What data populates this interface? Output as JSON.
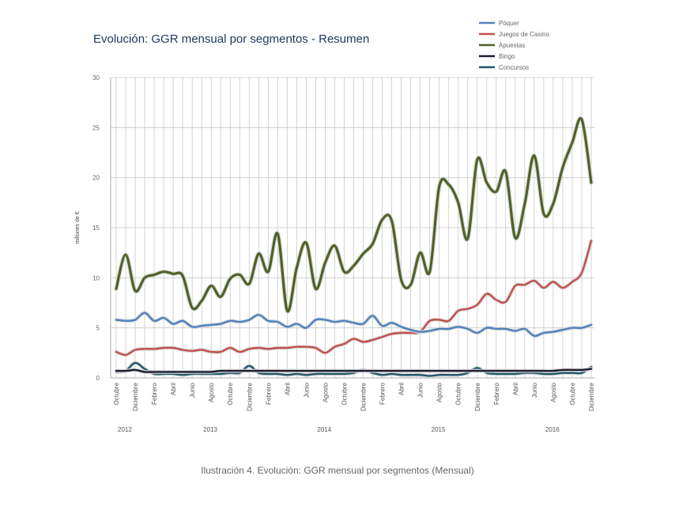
{
  "caption": "Ilustración 4. Evolución: GGR mensual por segmentos (Mensual)",
  "chart_data": {
    "type": "line",
    "title": "Evolución: GGR mensual por segmentos - Resumen",
    "xlabel": "",
    "ylabel": "millones de €",
    "ylim": [
      0,
      30
    ],
    "yticks": [
      0,
      5,
      10,
      15,
      20,
      25,
      30
    ],
    "grid": true,
    "legend_position": "top-right",
    "x": [
      "Oct 2012",
      "Nov 2012",
      "Dic 2012",
      "Ene 2013",
      "Feb 2013",
      "Mar 2013",
      "Abr 2013",
      "May 2013",
      "Jun 2013",
      "Jul 2013",
      "Ago 2013",
      "Sep 2013",
      "Oct 2013",
      "Nov 2013",
      "Dic 2013",
      "Ene 2014",
      "Feb 2014",
      "Mar 2014",
      "Abr 2014",
      "May 2014",
      "Jun 2014",
      "Jul 2014",
      "Ago 2014",
      "Sep 2014",
      "Oct 2014",
      "Nov 2014",
      "Dic 2014",
      "Ene 2015",
      "Feb 2015",
      "Mar 2015",
      "Abr 2015",
      "May 2015",
      "Jun 2015",
      "Jul 2015",
      "Ago 2015",
      "Sep 2015",
      "Oct 2015",
      "Nov 2015",
      "Dic 2015",
      "Ene 2016",
      "Feb 2016",
      "Mar 2016",
      "Abr 2016",
      "May 2016",
      "Jun 2016",
      "Jul 2016",
      "Ago 2016",
      "Sep 2016",
      "Oct 2016",
      "Nov 2016",
      "Dic 2016"
    ],
    "tick_labels": [
      "Octubre",
      "Diciembre",
      "Febrero",
      "Abril",
      "Junio",
      "Agosto",
      "Octubre",
      "Diciembre",
      "Febrero",
      "Abril",
      "Junio",
      "Agosto",
      "Octubre",
      "Diciembre",
      "Febrero",
      "Abril",
      "Junio",
      "Agosto",
      "Octubre",
      "Diciembre",
      "Febrero",
      "Abril",
      "Junio",
      "Agosto",
      "Octubre",
      "Diciembre"
    ],
    "years": [
      "2012",
      "2013",
      "2014",
      "2015",
      "2016"
    ],
    "series": [
      {
        "name": "Póquer",
        "color": "#4f81bd",
        "values": [
          5.8,
          5.7,
          5.8,
          6.5,
          5.7,
          6.0,
          5.4,
          5.7,
          5.1,
          5.2,
          5.3,
          5.4,
          5.7,
          5.6,
          5.8,
          6.3,
          5.7,
          5.6,
          5.1,
          5.4,
          5.0,
          5.8,
          5.8,
          5.6,
          5.7,
          5.5,
          5.4,
          6.2,
          5.2,
          5.5,
          5.1,
          4.8,
          4.6,
          4.7,
          4.9,
          4.9,
          5.1,
          4.9,
          4.5,
          5.0,
          4.9,
          4.9,
          4.7,
          4.9,
          4.2,
          4.5,
          4.6,
          4.8,
          5.0,
          5.0,
          5.3
        ]
      },
      {
        "name": "Juegos de Casino",
        "color": "#c0504d",
        "values": [
          2.6,
          2.3,
          2.8,
          2.9,
          2.9,
          3.0,
          3.0,
          2.8,
          2.7,
          2.8,
          2.6,
          2.6,
          3.0,
          2.6,
          2.9,
          3.0,
          2.9,
          3.0,
          3.0,
          3.1,
          3.1,
          3.0,
          2.5,
          3.1,
          3.4,
          3.9,
          3.6,
          3.8,
          4.1,
          4.4,
          4.5,
          4.5,
          4.6,
          5.7,
          5.8,
          5.7,
          6.7,
          6.9,
          7.3,
          8.4,
          7.8,
          7.6,
          9.2,
          9.3,
          9.7,
          9.0,
          9.6,
          9.0,
          9.6,
          10.5,
          13.7
        ]
      },
      {
        "name": "Apuestas",
        "color": "#4f6228",
        "values": [
          8.9,
          12.3,
          8.7,
          10.0,
          10.3,
          10.6,
          10.4,
          10.2,
          7.0,
          7.7,
          9.2,
          8.1,
          9.9,
          10.3,
          9.4,
          12.4,
          10.6,
          14.4,
          6.7,
          11.0,
          13.5,
          8.9,
          11.5,
          13.2,
          10.6,
          11.2,
          12.4,
          13.4,
          15.8,
          15.7,
          9.8,
          9.3,
          12.5,
          10.6,
          19.1,
          19.3,
          17.5,
          13.9,
          21.8,
          19.5,
          18.6,
          20.6,
          14.0,
          17.4,
          22.2,
          16.4,
          17.4,
          21.0,
          23.5,
          25.8,
          19.5
        ]
      },
      {
        "name": "Bingo",
        "color": "#1c1c2e",
        "values": [
          0.7,
          0.7,
          0.8,
          0.6,
          0.6,
          0.6,
          0.6,
          0.6,
          0.6,
          0.6,
          0.6,
          0.7,
          0.7,
          0.7,
          0.7,
          0.7,
          0.7,
          0.7,
          0.7,
          0.7,
          0.7,
          0.7,
          0.7,
          0.7,
          0.7,
          0.7,
          0.7,
          0.7,
          0.7,
          0.7,
          0.7,
          0.7,
          0.7,
          0.7,
          0.7,
          0.7,
          0.7,
          0.7,
          0.7,
          0.7,
          0.7,
          0.7,
          0.7,
          0.7,
          0.7,
          0.7,
          0.7,
          0.8,
          0.8,
          0.8,
          0.9
        ]
      },
      {
        "name": "Concursos",
        "color": "#215868",
        "values": [
          0.6,
          0.7,
          1.5,
          0.9,
          0.4,
          0.4,
          0.4,
          0.3,
          0.4,
          0.4,
          0.4,
          0.4,
          0.5,
          0.5,
          1.2,
          0.5,
          0.4,
          0.4,
          0.3,
          0.4,
          0.3,
          0.4,
          0.4,
          0.4,
          0.4,
          0.5,
          0.8,
          0.5,
          0.3,
          0.4,
          0.3,
          0.3,
          0.3,
          0.2,
          0.3,
          0.3,
          0.3,
          0.5,
          1.0,
          0.5,
          0.4,
          0.4,
          0.4,
          0.5,
          0.5,
          0.4,
          0.4,
          0.5,
          0.5,
          0.5,
          1.1
        ]
      }
    ]
  }
}
